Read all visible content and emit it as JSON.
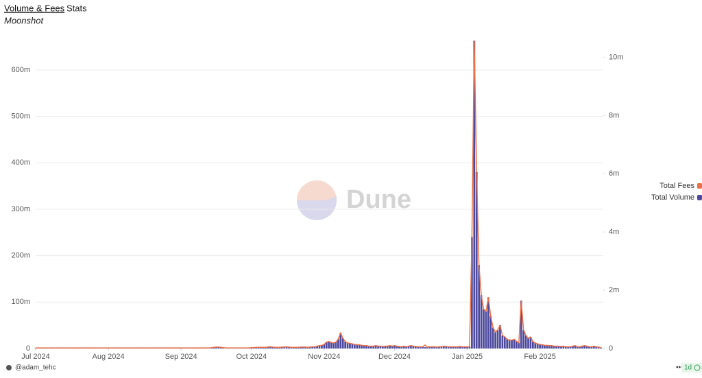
{
  "tabs": [
    "Volume & Fees",
    "Stats"
  ],
  "subtitle": "Moonshot",
  "watermark": "Dune",
  "footer": {
    "author": "@adam_tehc",
    "menu": "•••",
    "refresh": "1d"
  },
  "chart_data": {
    "type": "bar",
    "x": [
      0,
      1,
      2,
      3,
      4,
      5,
      6,
      7,
      8,
      9,
      10,
      11,
      12,
      13,
      14,
      15,
      16,
      17,
      18,
      19,
      20,
      21,
      22,
      23,
      24,
      25,
      26,
      27,
      28,
      29,
      30,
      31,
      32,
      33,
      34,
      35,
      36,
      37,
      38,
      39,
      40,
      41,
      42,
      43,
      44,
      45,
      46,
      47,
      48,
      49,
      50,
      51,
      52,
      53,
      54,
      55,
      56,
      57,
      58,
      59,
      60,
      61,
      62,
      63,
      64,
      65,
      66,
      67,
      68,
      69,
      70,
      71,
      72,
      73,
      74,
      75,
      76,
      77,
      78,
      79,
      80,
      81,
      82,
      83,
      84,
      85,
      86,
      87,
      88,
      89,
      90,
      91,
      92,
      93,
      94,
      95,
      96,
      97,
      98,
      99,
      100,
      101,
      102,
      103,
      104,
      105,
      106,
      107,
      108,
      109,
      110,
      111,
      112,
      113,
      114,
      115,
      116,
      117,
      118,
      119,
      120,
      121,
      122,
      123,
      124,
      125,
      126,
      127,
      128,
      129,
      130,
      131,
      132,
      133,
      134,
      135,
      136,
      137,
      138,
      139,
      140,
      141,
      142,
      143,
      144,
      145,
      146,
      147,
      148,
      149,
      150,
      151,
      152,
      153,
      154,
      155,
      156,
      157,
      158,
      159,
      160,
      161,
      162,
      163,
      164,
      165,
      166,
      167,
      168,
      169,
      170,
      171,
      172,
      173,
      174,
      175,
      176,
      177,
      178,
      179,
      180,
      181,
      182,
      183,
      184,
      185,
      186,
      187,
      188,
      189,
      190,
      191,
      192,
      193,
      194,
      195,
      196,
      197,
      198,
      199,
      200,
      201,
      202,
      203,
      204,
      205,
      206,
      207,
      208,
      209,
      210,
      211,
      212,
      213,
      214,
      215,
      216,
      217,
      218,
      219,
      220,
      221,
      222,
      223,
      224,
      225,
      226,
      227,
      228,
      229,
      230,
      231,
      232,
      233,
      234,
      235,
      236,
      237,
      238,
      239,
      240,
      241
    ],
    "xlim": [
      0,
      242
    ],
    "xticks": [
      {
        "value": 0,
        "label": "Jul 2024"
      },
      {
        "value": 31,
        "label": "Aug 2024"
      },
      {
        "value": 62,
        "label": "Sep 2024"
      },
      {
        "value": 92,
        "label": "Oct 2024"
      },
      {
        "value": 123,
        "label": "Nov 2024"
      },
      {
        "value": 153,
        "label": "Dec 2024"
      },
      {
        "value": 184,
        "label": "Jan 2025"
      },
      {
        "value": 215,
        "label": "Feb 2025"
      }
    ],
    "ylim": [
      0,
      665
    ],
    "yticks": [
      0,
      {
        "value": 100,
        "label": "100m"
      },
      {
        "value": 200,
        "label": "200m"
      },
      {
        "value": 300,
        "label": "300m"
      },
      {
        "value": 400,
        "label": "400m"
      },
      {
        "value": 500,
        "label": "500m"
      },
      {
        "value": 600,
        "label": "600m"
      }
    ],
    "y2lim": [
      0,
      10.6
    ],
    "y2ticks": [
      0,
      {
        "value": 2,
        "label": "2m"
      },
      {
        "value": 4,
        "label": "4m"
      },
      {
        "value": 6,
        "label": "6m"
      },
      {
        "value": 8,
        "label": "8m"
      },
      {
        "value": 10,
        "label": "10m"
      }
    ],
    "grid": true,
    "legend": "right",
    "series": [
      {
        "name": "Total Fees",
        "type": "line",
        "axis": "y2",
        "color": "#e8704a",
        "values": [
          0.02,
          0.02,
          0.02,
          0.02,
          0.02,
          0.02,
          0.02,
          0.02,
          0.02,
          0.02,
          0.02,
          0.02,
          0.02,
          0.02,
          0.02,
          0.02,
          0.02,
          0.02,
          0.02,
          0.02,
          0.02,
          0.02,
          0.02,
          0.02,
          0.02,
          0.02,
          0.02,
          0.02,
          0.02,
          0.02,
          0.02,
          0.02,
          0.02,
          0.02,
          0.02,
          0.02,
          0.02,
          0.02,
          0.02,
          0.02,
          0.02,
          0.02,
          0.02,
          0.02,
          0.02,
          0.02,
          0.02,
          0.02,
          0.02,
          0.02,
          0.02,
          0.02,
          0.02,
          0.02,
          0.02,
          0.02,
          0.02,
          0.02,
          0.02,
          0.02,
          0.02,
          0.02,
          0.02,
          0.02,
          0.02,
          0.02,
          0.02,
          0.02,
          0.02,
          0.02,
          0.02,
          0.02,
          0.02,
          0.02,
          0.02,
          0.03,
          0.04,
          0.05,
          0.05,
          0.04,
          0.03,
          0.02,
          0.02,
          0.02,
          0.02,
          0.02,
          0.02,
          0.02,
          0.02,
          0.02,
          0.02,
          0.02,
          0.03,
          0.03,
          0.04,
          0.04,
          0.04,
          0.04,
          0.04,
          0.05,
          0.06,
          0.05,
          0.04,
          0.04,
          0.04,
          0.05,
          0.05,
          0.06,
          0.05,
          0.04,
          0.04,
          0.04,
          0.04,
          0.05,
          0.05,
          0.05,
          0.04,
          0.05,
          0.06,
          0.06,
          0.08,
          0.1,
          0.11,
          0.14,
          0.22,
          0.24,
          0.21,
          0.19,
          0.22,
          0.32,
          0.54,
          0.35,
          0.24,
          0.19,
          0.18,
          0.16,
          0.14,
          0.13,
          0.13,
          0.11,
          0.1,
          0.1,
          0.08,
          0.08,
          0.08,
          0.1,
          0.08,
          0.08,
          0.07,
          0.08,
          0.08,
          0.1,
          0.08,
          0.1,
          0.08,
          0.07,
          0.06,
          0.08,
          0.06,
          0.08,
          0.1,
          0.08,
          0.07,
          0.06,
          0.06,
          0.06,
          0.12,
          0.05,
          0.06,
          0.06,
          0.06,
          0.05,
          0.06,
          0.06,
          0.08,
          0.07,
          0.06,
          0.06,
          0.06,
          0.06,
          0.06,
          0.07,
          0.06,
          0.06,
          0.06,
          0.06,
          3.82,
          10.55,
          6.05,
          2.86,
          1.83,
          1.35,
          1.27,
          1.75,
          1.11,
          0.72,
          0.56,
          0.64,
          0.8,
          0.45,
          0.4,
          0.32,
          0.29,
          0.29,
          0.32,
          0.25,
          0.19,
          1.64,
          0.64,
          0.45,
          0.35,
          0.4,
          0.24,
          0.19,
          0.16,
          0.14,
          0.13,
          0.11,
          0.11,
          0.1,
          0.1,
          0.08,
          0.08,
          0.08,
          0.07,
          0.08,
          0.06,
          0.06,
          0.06,
          0.08,
          0.1,
          0.06,
          0.06,
          0.08,
          0.1,
          0.08,
          0.06,
          0.06,
          0.08,
          0.06,
          0.05,
          0.03
        ]
      },
      {
        "name": "Total Volume",
        "type": "bar",
        "axis": "y",
        "color": "#4d4a9e",
        "values": [
          1.2,
          1.0,
          1.1,
          0.9,
          1.0,
          1.3,
          1.1,
          1.0,
          0.9,
          1.2,
          1.0,
          1.1,
          1.0,
          0.9,
          1.0,
          1.1,
          1.2,
          1.0,
          0.9,
          1.0,
          1.1,
          1.0,
          0.9,
          1.0,
          1.2,
          1.1,
          1.0,
          0.9,
          1.0,
          1.1,
          1.0,
          1.0,
          0.9,
          1.1,
          1.0,
          0.9,
          1.0,
          1.2,
          1.0,
          0.9,
          1.0,
          1.1,
          1.0,
          0.9,
          1.0,
          1.0,
          1.1,
          0.9,
          1.0,
          1.0,
          0.9,
          1.1,
          1.0,
          0.9,
          1.0,
          1.0,
          0.9,
          1.0,
          1.1,
          1.0,
          0.9,
          1.0,
          1.0,
          0.9,
          1.0,
          1.1,
          1.0,
          0.9,
          1.0,
          1.2,
          1.1,
          1.0,
          1.1,
          1.3,
          1.5,
          1.8,
          2.5,
          3.2,
          3.0,
          2.2,
          1.8,
          1.5,
          1.4,
          1.3,
          1.5,
          1.6,
          1.4,
          1.3,
          1.5,
          1.7,
          1.6,
          1.5,
          1.8,
          2.0,
          2.2,
          2.5,
          2.8,
          2.6,
          2.4,
          3.0,
          3.5,
          3.2,
          2.8,
          2.5,
          2.6,
          3.0,
          3.2,
          3.5,
          3.0,
          2.8,
          2.6,
          2.5,
          2.8,
          3.0,
          3.2,
          3.0,
          2.8,
          3.0,
          3.5,
          4.0,
          5.0,
          6.0,
          7.0,
          9,
          14,
          15,
          13,
          12,
          14,
          20,
          34,
          22,
          15,
          12,
          11,
          10,
          9,
          8,
          8,
          7,
          6,
          6,
          5,
          5,
          5,
          6,
          5,
          5,
          4.5,
          5,
          5,
          6,
          5,
          6,
          5,
          4.5,
          4,
          5,
          4,
          5,
          6,
          5,
          4.5,
          4,
          3.5,
          3.5,
          3,
          3,
          3.5,
          4,
          3.5,
          3,
          3.5,
          4,
          5,
          4.5,
          4,
          4,
          3.5,
          3.5,
          4,
          4.5,
          4,
          3.5,
          3.5,
          4,
          240,
          663,
          380,
          180,
          115,
          85,
          80,
          110,
          70,
          45,
          35,
          40,
          50,
          28,
          25,
          20,
          18,
          18,
          20,
          16,
          12,
          103,
          40,
          28,
          22,
          25,
          15,
          12,
          10,
          9,
          8,
          7,
          7,
          6,
          6,
          5,
          5,
          5,
          4.5,
          5,
          4,
          4,
          4,
          5,
          6,
          4,
          4,
          5,
          6,
          5,
          4,
          4,
          5,
          4,
          3,
          2
        ]
      }
    ]
  }
}
